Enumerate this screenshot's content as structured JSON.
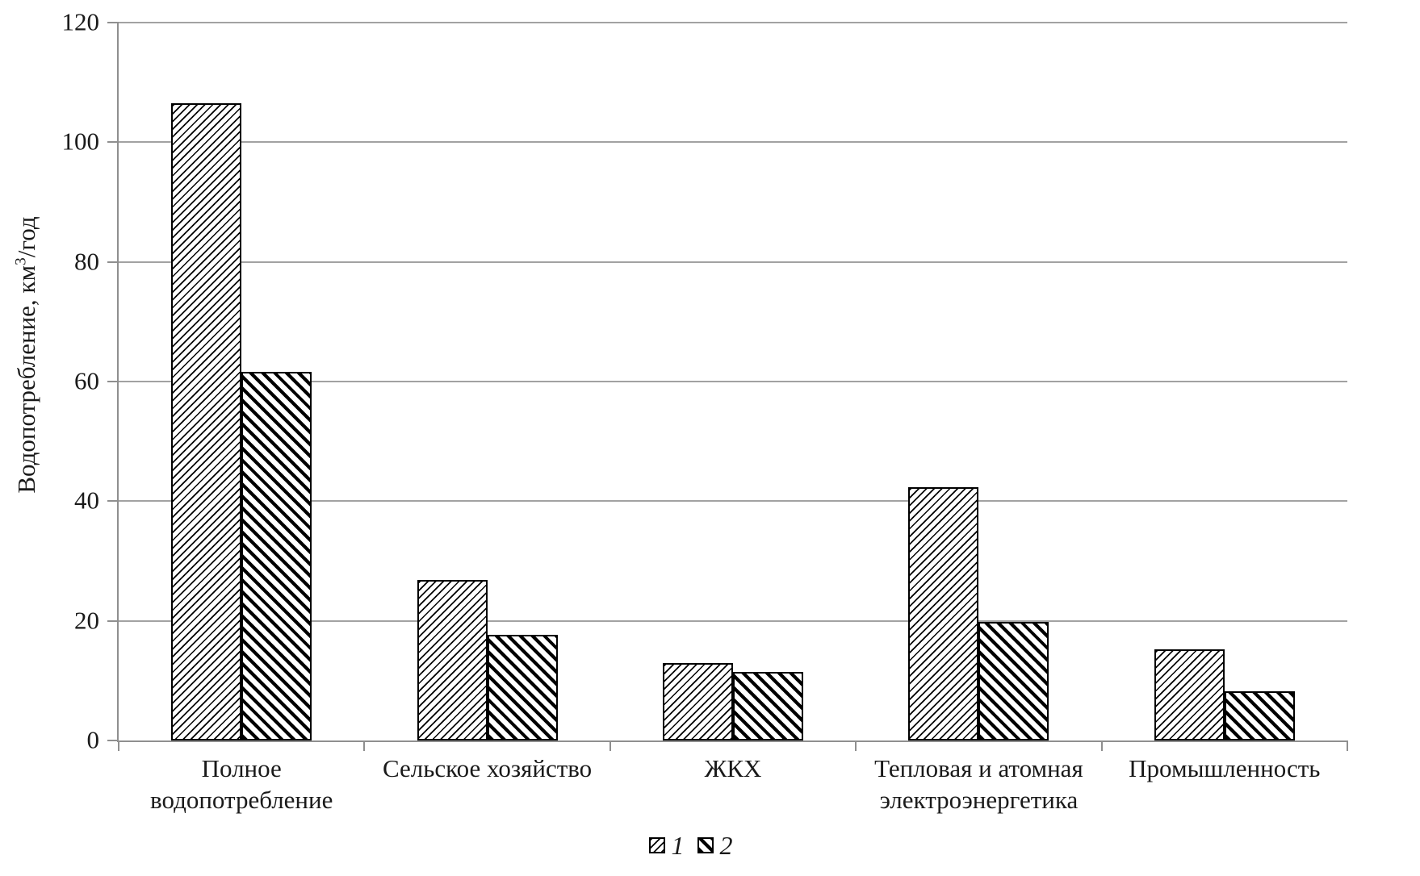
{
  "y_axis": {
    "title_prefix": "Водопотребление, км",
    "title_sup": "3",
    "title_suffix": "/год"
  },
  "legend": {
    "items": [
      {
        "label": "1",
        "series": "s1",
        "swatch": "diagonal-forward-hatch"
      },
      {
        "label": "2",
        "series": "s2",
        "swatch": "diagonal-back-hatch"
      }
    ]
  },
  "chart_data": {
    "type": "bar",
    "categories": [
      "Полное водопотребление",
      "Сельское хозяйство",
      "ЖКХ",
      "Тепловая и атомная электроэнергетика",
      "Промышленность"
    ],
    "series": [
      {
        "name": "1",
        "hatch": "thin /",
        "values": [
          106.5,
          26.8,
          13.0,
          42.4,
          15.2
        ]
      },
      {
        "name": "2",
        "hatch": "thick \\",
        "values": [
          61.6,
          17.6,
          11.4,
          19.8,
          8.2
        ]
      }
    ],
    "title": "",
    "xlabel": "",
    "ylabel": "Водопотребление, км3/год",
    "ylim": [
      0,
      120
    ],
    "yticks": [
      0,
      20,
      40,
      60,
      80,
      100,
      120
    ],
    "grid": true,
    "legend_position": "bottom-center"
  },
  "colors": {
    "background": "#ffffff",
    "gridline": "#a2a2a2",
    "axis": "#8f8f8f",
    "bar_fill": "#ffffff",
    "hatch": "#000000",
    "text": "#1a1a1a"
  }
}
